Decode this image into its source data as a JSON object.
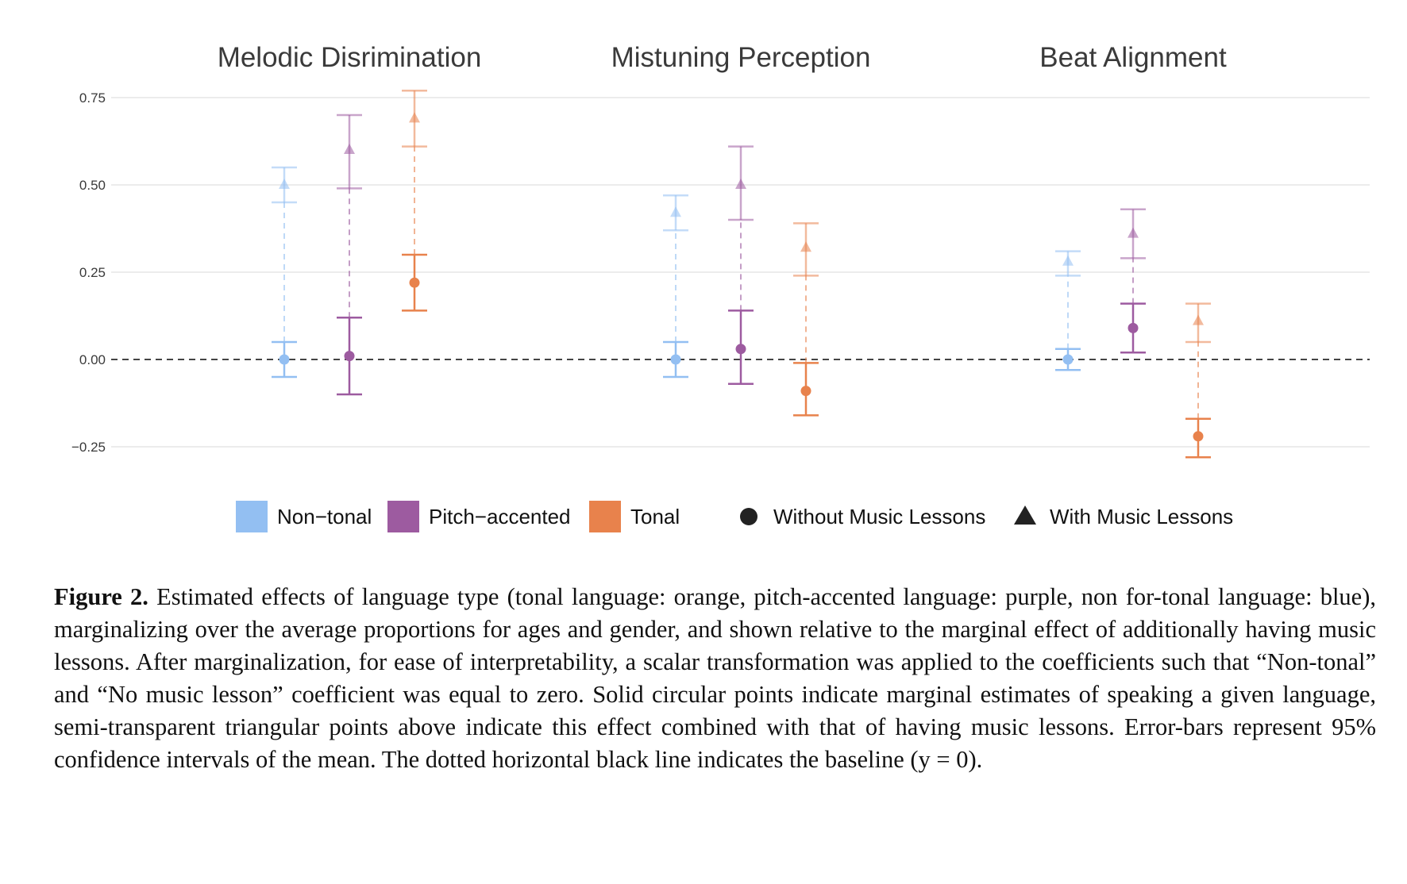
{
  "chart_data": {
    "type": "scatter",
    "subtype": "faceted point-range plot with error bars",
    "panels": [
      {
        "title": "Melodic Disrimination",
        "series": [
          {
            "language": "Non−tonal",
            "without_lessons": {
              "y": 0.0,
              "ci": [
                -0.05,
                0.05
              ]
            },
            "with_lessons": {
              "y": 0.5,
              "ci": [
                0.45,
                0.55
              ]
            }
          },
          {
            "language": "Pitch−accented",
            "without_lessons": {
              "y": 0.01,
              "ci": [
                -0.1,
                0.12
              ]
            },
            "with_lessons": {
              "y": 0.6,
              "ci": [
                0.49,
                0.7
              ]
            }
          },
          {
            "language": "Tonal",
            "without_lessons": {
              "y": 0.22,
              "ci": [
                0.14,
                0.3
              ]
            },
            "with_lessons": {
              "y": 0.69,
              "ci": [
                0.61,
                0.77
              ]
            }
          }
        ]
      },
      {
        "title": "Mistuning Perception",
        "series": [
          {
            "language": "Non−tonal",
            "without_lessons": {
              "y": 0.0,
              "ci": [
                -0.05,
                0.05
              ]
            },
            "with_lessons": {
              "y": 0.42,
              "ci": [
                0.37,
                0.47
              ]
            }
          },
          {
            "language": "Pitch−accented",
            "without_lessons": {
              "y": 0.03,
              "ci": [
                -0.07,
                0.14
              ]
            },
            "with_lessons": {
              "y": 0.5,
              "ci": [
                0.4,
                0.61
              ]
            }
          },
          {
            "language": "Tonal",
            "without_lessons": {
              "y": -0.09,
              "ci": [
                -0.16,
                -0.01
              ]
            },
            "with_lessons": {
              "y": 0.32,
              "ci": [
                0.24,
                0.39
              ]
            }
          }
        ]
      },
      {
        "title": "Beat Alignment",
        "series": [
          {
            "language": "Non−tonal",
            "without_lessons": {
              "y": 0.0,
              "ci": [
                -0.03,
                0.03
              ]
            },
            "with_lessons": {
              "y": 0.28,
              "ci": [
                0.24,
                0.31
              ]
            }
          },
          {
            "language": "Pitch−accented",
            "without_lessons": {
              "y": 0.09,
              "ci": [
                0.02,
                0.16
              ]
            },
            "with_lessons": {
              "y": 0.36,
              "ci": [
                0.29,
                0.43
              ]
            }
          },
          {
            "language": "Tonal",
            "without_lessons": {
              "y": -0.22,
              "ci": [
                -0.28,
                -0.17
              ]
            },
            "with_lessons": {
              "y": 0.11,
              "ci": [
                0.05,
                0.16
              ]
            }
          }
        ]
      }
    ],
    "y_ticks": [
      -0.25,
      0.0,
      0.25,
      0.5,
      0.75
    ],
    "y_tick_labels": [
      "−0.25",
      "0.00",
      "0.25",
      "0.50",
      "0.75"
    ],
    "ylim": [
      -0.3,
      0.78
    ],
    "baseline": 0,
    "grid": true,
    "legend_position": "bottom",
    "colors": {
      "Non−tonal": "#93bff2",
      "Pitch−accented": "#9d5ba0",
      "Tonal": "#e8824c"
    },
    "legend": {
      "colors": [
        {
          "label": "Non−tonal",
          "color": "#93bff2"
        },
        {
          "label": "Pitch−accented",
          "color": "#9d5ba0"
        },
        {
          "label": "Tonal",
          "color": "#e8824c"
        }
      ],
      "shapes": [
        {
          "label": "Without Music Lessons",
          "shape": "circle"
        },
        {
          "label": "With Music Lessons",
          "shape": "triangle"
        }
      ]
    }
  },
  "caption": {
    "label": "Figure 2.",
    "text": "Estimated effects of language type (tonal language: orange, pitch-accented language: purple, non for-tonal language: blue), marginalizing over the average proportions for ages and gender, and shown relative to the marginal effect of additionally having music lessons. After marginalization, for ease of interpretability, a scalar transformation was applied to the coefficients such that “Non-tonal” and “No music lesson” coefficient was equal to zero. Solid circular points indicate marginal estimates of speaking a given language, semi-transparent triangular points above indicate this effect combined with that of having music lessons. Error-bars represent 95% confidence intervals of the mean. The dotted horizontal black line indicates the baseline (y = 0)."
  }
}
